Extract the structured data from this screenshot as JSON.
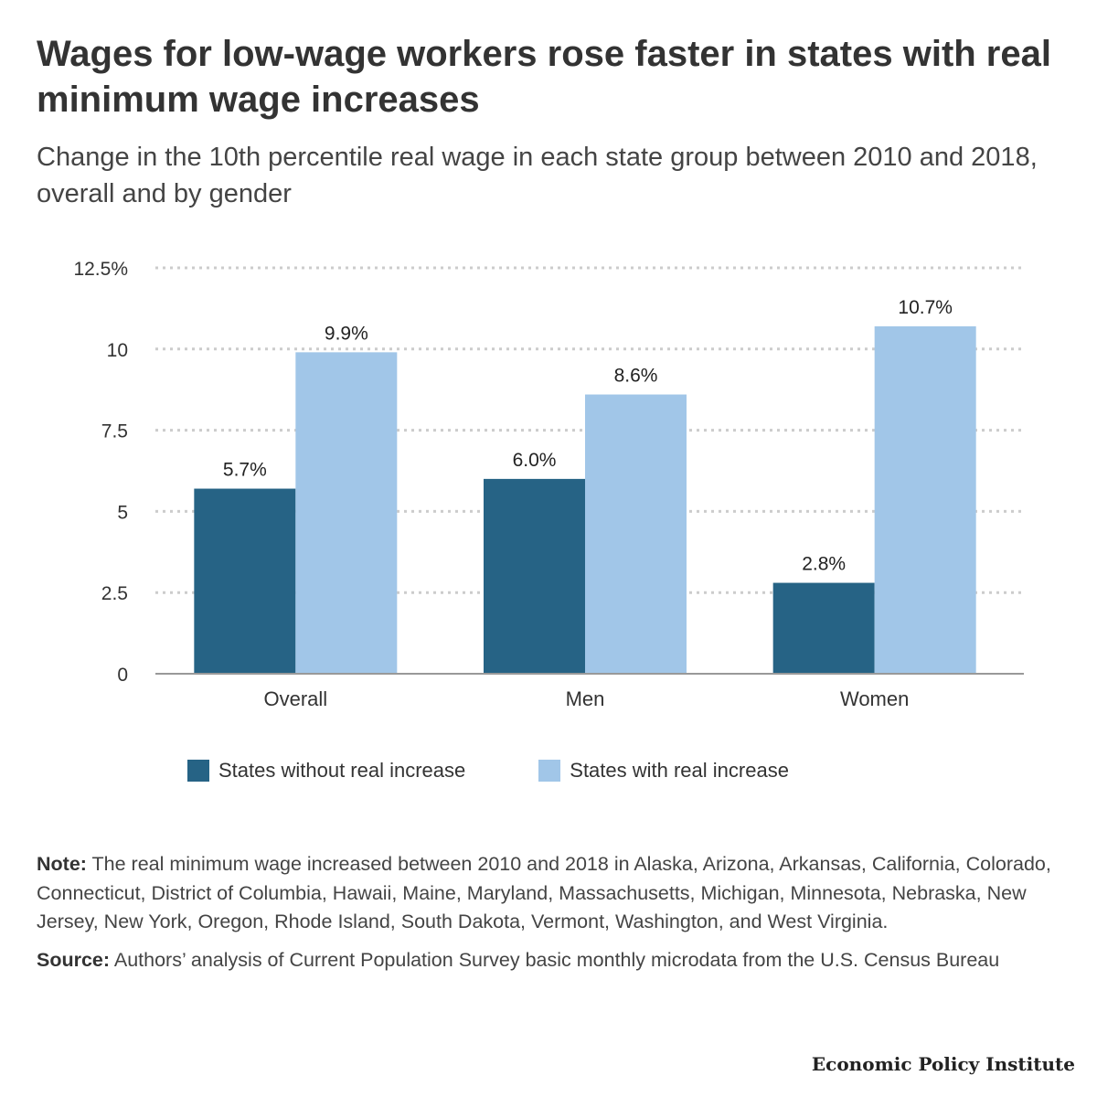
{
  "title": "Wages for low-wage workers rose faster in states with real minimum wage increases",
  "subtitle": "Change in the 10th percentile real wage in each state group between 2010 and 2018, overall and by gender",
  "chart_data": {
    "type": "bar",
    "categories": [
      "Overall",
      "Men",
      "Women"
    ],
    "series": [
      {
        "name": "States without real increase",
        "values": [
          5.7,
          6.0,
          2.8
        ],
        "labels": [
          "5.7%",
          "6.0%",
          "2.8%"
        ],
        "color": "#266385"
      },
      {
        "name": "States with real increase",
        "values": [
          9.9,
          8.6,
          10.7
        ],
        "labels": [
          "9.9%",
          "8.6%",
          "10.7%"
        ],
        "color": "#a1c6e8"
      }
    ],
    "yticks": [
      0,
      2.5,
      5,
      7.5,
      10,
      12.5
    ],
    "ytick_labels": [
      "0",
      "2.5",
      "5",
      "7.5",
      "10",
      "12.5%"
    ],
    "ylim": [
      0,
      12.5
    ],
    "grid": true,
    "legend": "bottom"
  },
  "note": {
    "label": "Note:",
    "text": " The real minimum wage increased between 2010 and 2018 in Alaska, Arizona, Arkansas, California, Colorado, Connecticut, District of Columbia, Hawaii, Maine, Maryland, Massachusetts, Michigan, Minnesota, Nebraska, New Jersey, New York, Oregon, Rhode Island, South Dakota, Vermont, Washington, and West Virginia."
  },
  "source": {
    "label": "Source:",
    "text": " Authors’ analysis of Current Population Survey basic monthly microdata from the U.S. Census Bureau"
  },
  "brand": "Economic Policy Institute"
}
